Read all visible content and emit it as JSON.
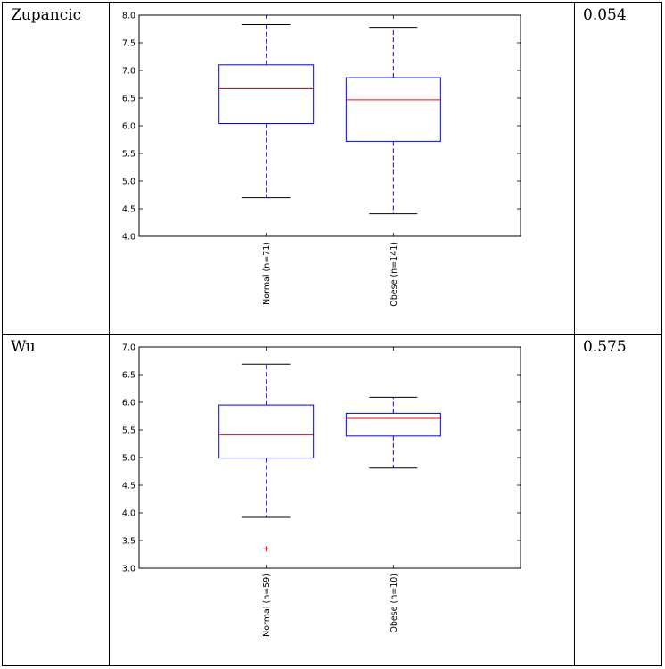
{
  "rows": [
    {
      "study": "Zupancic",
      "p_value": "0.054"
    },
    {
      "study": "Wu",
      "p_value": "0.575"
    }
  ],
  "colors": {
    "box": "#0000ff",
    "median": "#ff0000",
    "whisker": "#0000ff",
    "cap": "#000000",
    "outlier": "#ff0000"
  },
  "chart_data": [
    {
      "type": "box",
      "title": "",
      "xlabel": "",
      "ylabel": "",
      "ylim": [
        4.0,
        8.0
      ],
      "yticks": [
        "4.0",
        "4.5",
        "5.0",
        "5.5",
        "6.0",
        "6.5",
        "7.0",
        "7.5",
        "8.0"
      ],
      "categories": [
        "Normal (n=71)",
        "Obese (n=141)"
      ],
      "boxes": [
        {
          "whislo": 4.7,
          "q1": 6.04,
          "med": 6.67,
          "q3": 7.1,
          "whishi": 7.83,
          "fliers": []
        },
        {
          "whislo": 4.41,
          "q1": 5.72,
          "med": 6.47,
          "q3": 6.87,
          "whishi": 7.78,
          "fliers": []
        }
      ]
    },
    {
      "type": "box",
      "title": "",
      "xlabel": "",
      "ylabel": "",
      "ylim": [
        3.0,
        7.0
      ],
      "yticks": [
        "3.0",
        "3.5",
        "4.0",
        "4.5",
        "5.0",
        "5.5",
        "6.0",
        "6.5",
        "7.0"
      ],
      "categories": [
        "Normal (n=59)",
        "Obese (n=10)"
      ],
      "boxes": [
        {
          "whislo": 3.92,
          "q1": 4.99,
          "med": 5.41,
          "q3": 5.95,
          "whishi": 6.69,
          "fliers": [
            3.35
          ]
        },
        {
          "whislo": 4.81,
          "q1": 5.39,
          "med": 5.71,
          "q3": 5.8,
          "whishi": 6.09,
          "fliers": []
        }
      ]
    }
  ]
}
